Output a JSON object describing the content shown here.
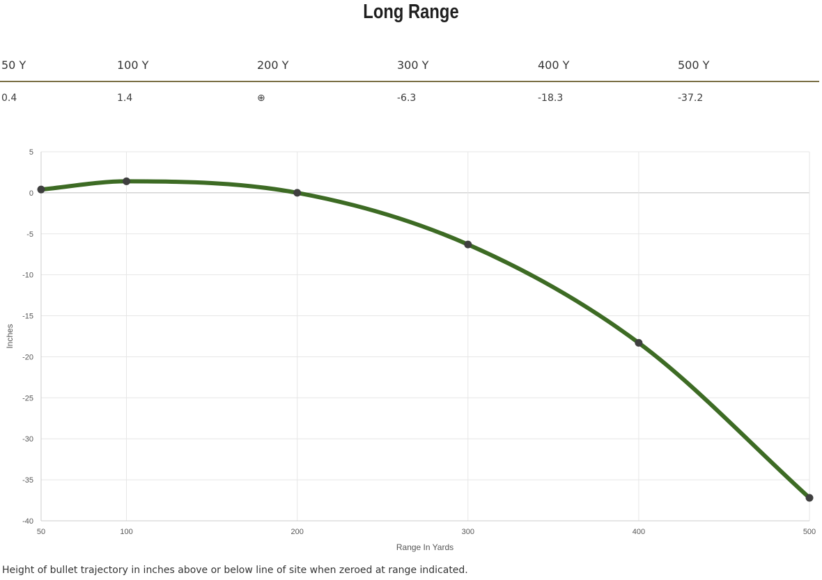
{
  "page": {
    "title": "Long Range",
    "footnote": "Height of bullet trajectory in inches above or below line of site when zeroed at range indicated."
  },
  "range_table": {
    "headers": [
      "50 Y",
      "100 Y",
      "200 Y",
      "300 Y",
      "400 Y",
      "500 Y"
    ],
    "values": [
      "0.4",
      "1.4",
      "⊕",
      "-6.3",
      "-18.3",
      "-37.2"
    ]
  },
  "colors": {
    "line": "#3d6b24",
    "point": "#3f3f3f",
    "table_rule": "#7a6f45",
    "grid": "#e6e6e6",
    "zero_line": "#bdbdbd"
  },
  "chart_data": {
    "type": "line",
    "x": [
      50,
      100,
      200,
      300,
      400,
      500
    ],
    "series": [
      {
        "values": [
          0.4,
          1.4,
          0,
          -6.3,
          -18.3,
          -37.2
        ]
      }
    ],
    "xlabel": "Range In Yards",
    "ylabel": "Inches",
    "xticks": [
      50,
      100,
      200,
      300,
      400,
      500
    ],
    "yticks": [
      5,
      0,
      -5,
      -10,
      -15,
      -20,
      -25,
      -30,
      -35,
      -40
    ],
    "ylim": [
      -40,
      5
    ],
    "grid": true
  }
}
